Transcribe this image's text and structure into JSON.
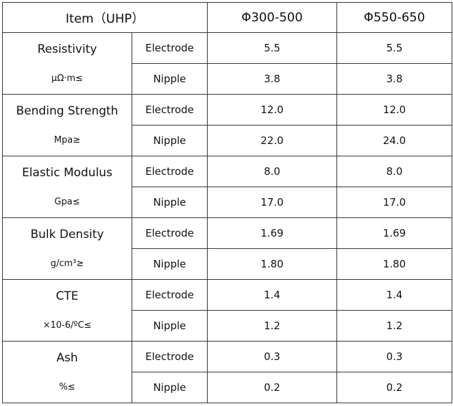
{
  "header": [
    "Item（UHP）",
    "Φ300-500",
    "Φ550-650"
  ],
  "groups": [
    {
      "name": "Resistivity",
      "unit": "μΩ·m≤",
      "rows": [
        {
          "type": "Electrode",
          "values": [
            "5.5",
            "5.5"
          ]
        },
        {
          "type": "Nipple",
          "values": [
            "3.8",
            "3.8"
          ]
        }
      ]
    },
    {
      "name": "Bending Strength",
      "unit": "Mpa≥",
      "rows": [
        {
          "type": "Electrode",
          "values": [
            "12.0",
            "12.0"
          ]
        },
        {
          "type": "Nipple",
          "values": [
            "22.0",
            "24.0"
          ]
        }
      ]
    },
    {
      "name": "Elastic Modulus",
      "unit": "Gpa≤",
      "rows": [
        {
          "type": "Electrode",
          "values": [
            "8.0",
            "8.0"
          ]
        },
        {
          "type": "Nipple",
          "values": [
            "17.0",
            "17.0"
          ]
        }
      ]
    },
    {
      "name": "Bulk Density",
      "unit": "g/cm³≥",
      "rows": [
        {
          "type": "Electrode",
          "values": [
            "1.69",
            "1.69"
          ]
        },
        {
          "type": "Nipple",
          "values": [
            "1.80",
            "1.80"
          ]
        }
      ]
    },
    {
      "name": "CTE",
      "unit": "×10-6/ºC≤",
      "rows": [
        {
          "type": "Electrode",
          "values": [
            "1.4",
            "1.4"
          ]
        },
        {
          "type": "Nipple",
          "values": [
            "1.2",
            "1.2"
          ]
        }
      ]
    },
    {
      "name": "Ash",
      "unit": "%≤",
      "rows": [
        {
          "type": "Electrode",
          "values": [
            "0.3",
            "0.3"
          ]
        },
        {
          "type": "Nipple",
          "values": [
            "0.2",
            "0.2"
          ]
        }
      ]
    }
  ]
}
